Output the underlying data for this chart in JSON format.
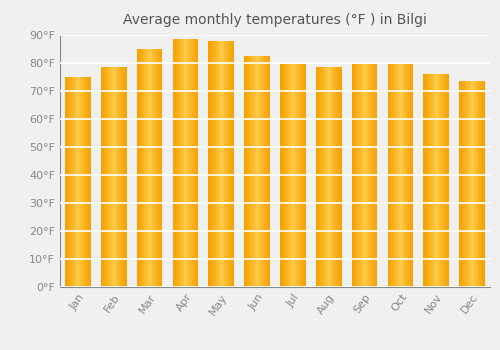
{
  "months": [
    "Jan",
    "Feb",
    "Mar",
    "Apr",
    "May",
    "Jun",
    "Jul",
    "Aug",
    "Sep",
    "Oct",
    "Nov",
    "Dec"
  ],
  "values": [
    75,
    78.5,
    85,
    88.5,
    88,
    82.5,
    79.5,
    78.5,
    79.5,
    79.5,
    76,
    73.5
  ],
  "bar_color_center": "#FFD050",
  "bar_color_edge": "#F5A000",
  "bar_top_color": "#F0A000",
  "title": "Average monthly temperatures (°F ) in Bilgi",
  "ylim": [
    0,
    90
  ],
  "yticks": [
    0,
    10,
    20,
    30,
    40,
    50,
    60,
    70,
    80,
    90
  ],
  "ytick_labels": [
    "0°F",
    "10°F",
    "20°F",
    "30°F",
    "40°F",
    "50°F",
    "60°F",
    "70°F",
    "80°F",
    "90°F"
  ],
  "background_color": "#f0f0f0",
  "grid_color": "#ffffff",
  "title_fontsize": 10,
  "tick_fontsize": 8,
  "tick_color": "#888888",
  "bar_width": 0.72
}
